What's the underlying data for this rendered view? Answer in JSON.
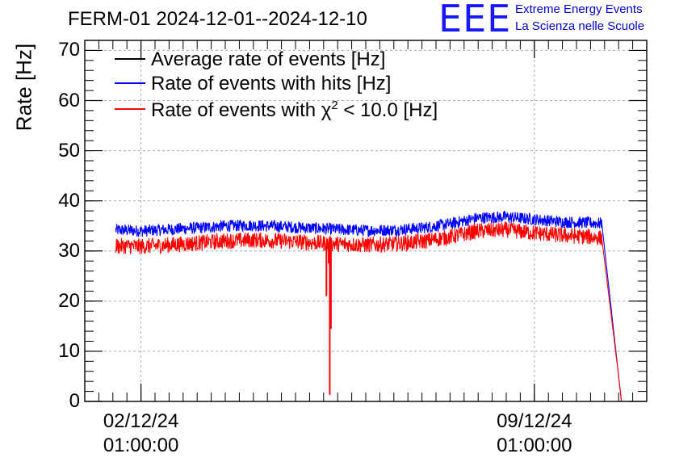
{
  "header": {
    "title": "FERM-01 2024-12-01--2024-12-10",
    "logo_mark": "EEE",
    "logo_line1": "Extreme Energy Events",
    "logo_line2": "La Scienza nelle Scuole"
  },
  "chart_data": {
    "type": "line",
    "title": "FERM-01 2024-12-01--2024-12-10",
    "ylabel": "Rate [Hz]",
    "xlabel": "",
    "ylim": [
      0,
      72
    ],
    "yticks": [
      "0",
      "10",
      "20",
      "30",
      "40",
      "50",
      "60",
      "70"
    ],
    "xticks": [
      {
        "date": "02/12/24",
        "time": "01:00:00",
        "x_days": 1.0
      },
      {
        "date": "09/12/24",
        "time": "01:00:00",
        "x_days": 8.0
      }
    ],
    "xlim_days": [
      0.0,
      10.0
    ],
    "grid": true,
    "legend_position": "top-left",
    "legend": [
      {
        "label": "Average rate of events [Hz]",
        "color": "#000000"
      },
      {
        "label": "Rate of events with hits [Hz]",
        "color": "#0000ff"
      },
      {
        "label_prefix": "Rate of events with ",
        "label_symbol": "χ",
        "label_sup": "2",
        "label_suffix": " < 10.0 [Hz]",
        "color": "#ff0000"
      }
    ],
    "series": [
      {
        "name": "Rate of events with hits [Hz]",
        "color": "#0000ff",
        "x_days": [
          0.55,
          1.0,
          1.5,
          2.0,
          2.5,
          3.0,
          3.5,
          4.0,
          4.5,
          5.0,
          5.5,
          6.0,
          6.5,
          7.0,
          7.5,
          8.0,
          8.5,
          9.0,
          9.2,
          9.5,
          9.55
        ],
        "values": [
          34.2,
          34.0,
          34.3,
          34.6,
          35.0,
          35.1,
          34.9,
          34.6,
          34.3,
          34.1,
          34.2,
          34.6,
          35.4,
          36.6,
          36.8,
          36.3,
          35.8,
          35.6,
          35.5,
          5.0,
          0.0
        ],
        "noise_band": 1.2
      },
      {
        "name": "Rate of events with χ2 < 10.0 [Hz]",
        "color": "#ff0000",
        "x_days": [
          0.55,
          1.0,
          1.5,
          2.0,
          2.5,
          3.0,
          3.5,
          4.0,
          4.5,
          5.0,
          5.5,
          6.0,
          6.5,
          7.0,
          7.5,
          8.0,
          8.5,
          9.0,
          9.2,
          9.5,
          9.55
        ],
        "values": [
          31.0,
          30.9,
          31.2,
          31.6,
          32.0,
          32.2,
          32.0,
          31.7,
          31.4,
          31.2,
          31.4,
          31.9,
          32.8,
          34.0,
          34.2,
          33.6,
          33.1,
          32.8,
          32.6,
          5.0,
          0.0
        ],
        "noise_band": 1.6,
        "dips": [
          {
            "x_days": 4.3,
            "value": 21.0
          },
          {
            "x_days": 4.34,
            "value": 27.5
          },
          {
            "x_days": 4.36,
            "value": 1.3
          },
          {
            "x_days": 4.38,
            "value": 14.5
          }
        ]
      }
    ]
  }
}
